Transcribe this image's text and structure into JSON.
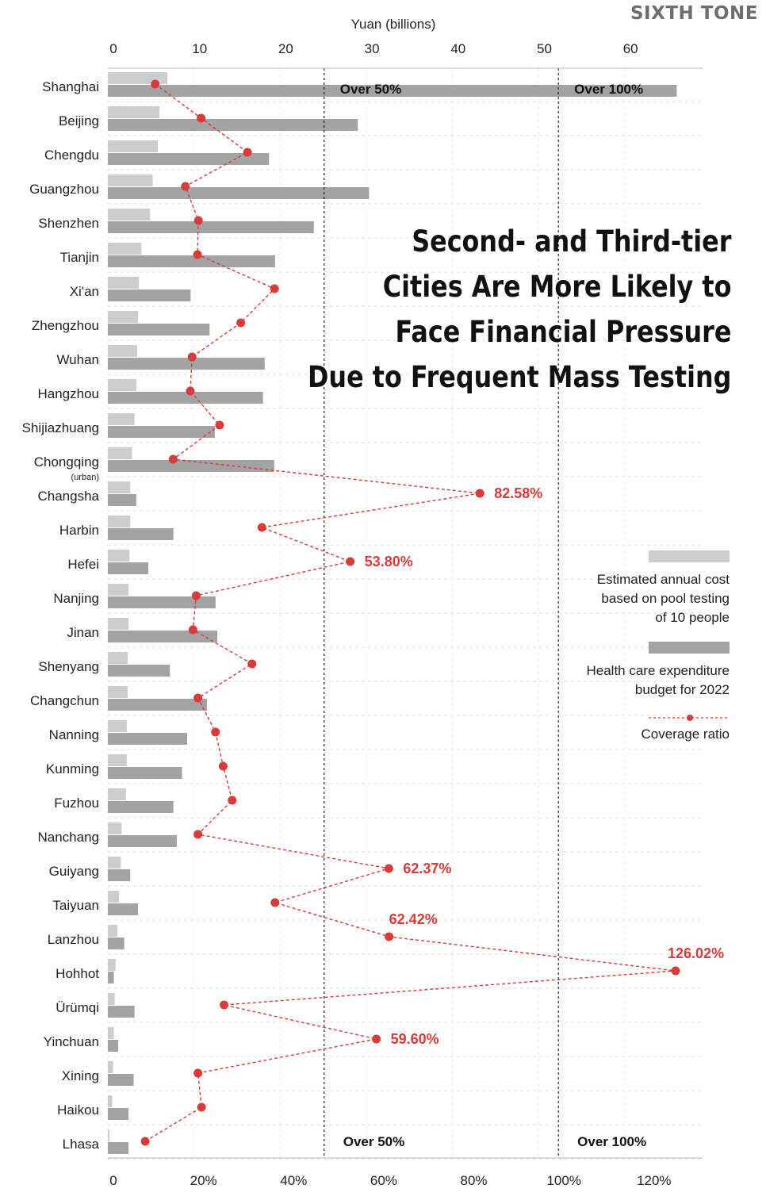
{
  "brand": "SIXTH TONE",
  "headline": [
    "Second- and Third-tier",
    "Cities Are More Likely to",
    "Face Financial Pressure",
    "Due to Frequent Mass Testing"
  ],
  "legend": {
    "cost_label": [
      "Estimated annual cost",
      "based on pool testing",
      "of 10 people"
    ],
    "budget_label": [
      "Health care expenditure",
      "budget for 2022"
    ],
    "ratio_label": "Coverage ratio"
  },
  "colors": {
    "cost": "#cdcdcd",
    "budget": "#a3a3a3",
    "ratio": "#d93a3a",
    "grid": "#dddddd",
    "text": "#222222"
  },
  "chart_data": {
    "type": "bar",
    "top_axis": {
      "label": "Yuan (billions)",
      "ticks": [
        0,
        10,
        20,
        30,
        40,
        50,
        60
      ],
      "range": [
        0,
        69
      ]
    },
    "bottom_axis": {
      "tick_labels": [
        "0",
        "20%",
        "40%",
        "60%",
        "80%",
        "100%",
        "120%"
      ],
      "ticks": [
        0,
        20,
        40,
        60,
        80,
        100,
        120
      ],
      "range": [
        0,
        132
      ]
    },
    "reference_lines": [
      {
        "value_pct": 48,
        "label": "Over 50%"
      },
      {
        "value_pct": 100,
        "label": "Over 100%"
      }
    ],
    "categories": [
      "Shanghai",
      "Beijing",
      "Chengdu",
      "Guangzhou",
      "Shenzhen",
      "Tianjin",
      "Xi'an",
      "Zhengzhou",
      "Wuhan",
      "Hangzhou",
      "Shijiazhuang",
      "Chongqing",
      "Changsha",
      "Harbin",
      "Hefei",
      "Nanjing",
      "Jinan",
      "Shenyang",
      "Changchun",
      "Nanning",
      "Kunming",
      "Fuzhou",
      "Nanchang",
      "Guiyang",
      "Taiyuan",
      "Lanzhou",
      "Hohhot",
      "Ürümqi",
      "Yinchuan",
      "Xining",
      "Haikou",
      "Lhasa"
    ],
    "category_notes": {
      "Chongqing": "(urban)"
    },
    "series": [
      {
        "name": "Estimated annual cost based on pool testing of 10 people",
        "unit": "yuan billions",
        "values": [
          6.9,
          6.0,
          5.8,
          5.2,
          4.9,
          3.9,
          3.6,
          3.5,
          3.4,
          3.3,
          3.1,
          2.8,
          2.6,
          2.6,
          2.5,
          2.4,
          2.4,
          2.3,
          2.3,
          2.2,
          2.2,
          2.1,
          1.6,
          1.5,
          1.3,
          1.1,
          0.9,
          0.8,
          0.7,
          0.6,
          0.5,
          0.2
        ]
      },
      {
        "name": "Health care expenditure budget for 2022",
        "unit": "yuan billions",
        "values": [
          66.0,
          29.0,
          18.7,
          30.3,
          23.9,
          19.4,
          9.6,
          11.8,
          18.2,
          18.0,
          12.4,
          19.3,
          3.3,
          7.6,
          4.7,
          12.5,
          12.7,
          7.2,
          11.5,
          9.2,
          8.6,
          7.6,
          8.0,
          2.6,
          3.5,
          1.9,
          0.7,
          3.1,
          1.2,
          3.0,
          2.4,
          2.4
        ]
      },
      {
        "name": "Coverage ratio",
        "unit": "percent",
        "values": [
          10.5,
          20.7,
          31.0,
          17.2,
          20.1,
          19.9,
          37.0,
          29.5,
          18.7,
          18.3,
          24.8,
          14.5,
          82.58,
          34.2,
          53.8,
          19.6,
          18.9,
          32.0,
          20.0,
          23.9,
          25.6,
          27.6,
          20.0,
          62.37,
          37.1,
          62.42,
          126.02,
          25.8,
          59.6,
          20.0,
          20.8,
          8.3
        ]
      }
    ],
    "annotated_ratios": {
      "Changsha": "82.58%",
      "Hefei": "53.80%",
      "Guiyang": "62.37%",
      "Lanzhou": "62.42%",
      "Hohhot": "126.02%",
      "Yinchuan": "59.60%"
    }
  }
}
